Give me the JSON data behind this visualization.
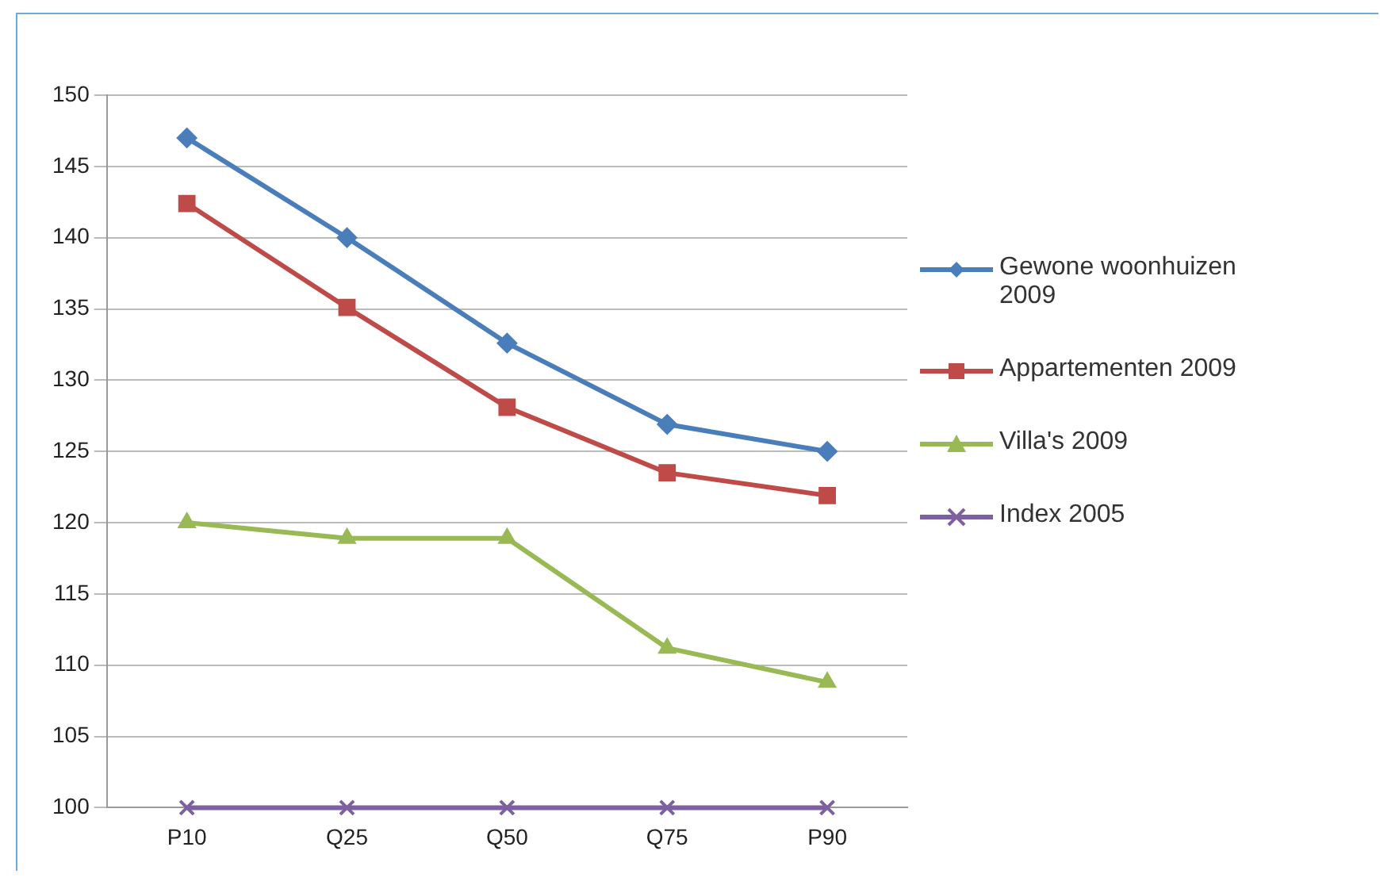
{
  "chart_data": {
    "type": "line",
    "categories": [
      "P10",
      "Q25",
      "Q50",
      "Q75",
      "P90"
    ],
    "series": [
      {
        "name": "Gewone woonhuizen 2009",
        "color": "#4a7ebb",
        "marker": "diamond",
        "values": [
          147,
          140,
          132.6,
          126.9,
          125
        ]
      },
      {
        "name": "Appartementen 2009",
        "color": "#be4b48",
        "marker": "square",
        "values": [
          142.4,
          135.1,
          128.1,
          123.5,
          121.9
        ]
      },
      {
        "name": "Villa's 2009",
        "color": "#98b954",
        "marker": "triangle",
        "values": [
          120,
          118.9,
          118.9,
          111.2,
          108.8
        ]
      },
      {
        "name": "Index 2005",
        "color": "#7d60a0",
        "marker": "cross",
        "values": [
          100,
          100,
          100,
          100,
          100
        ]
      }
    ],
    "ylim": [
      100,
      150
    ],
    "yticks": [
      100,
      105,
      110,
      115,
      120,
      125,
      130,
      135,
      140,
      145,
      150
    ],
    "grid": "y",
    "legend": "right"
  }
}
